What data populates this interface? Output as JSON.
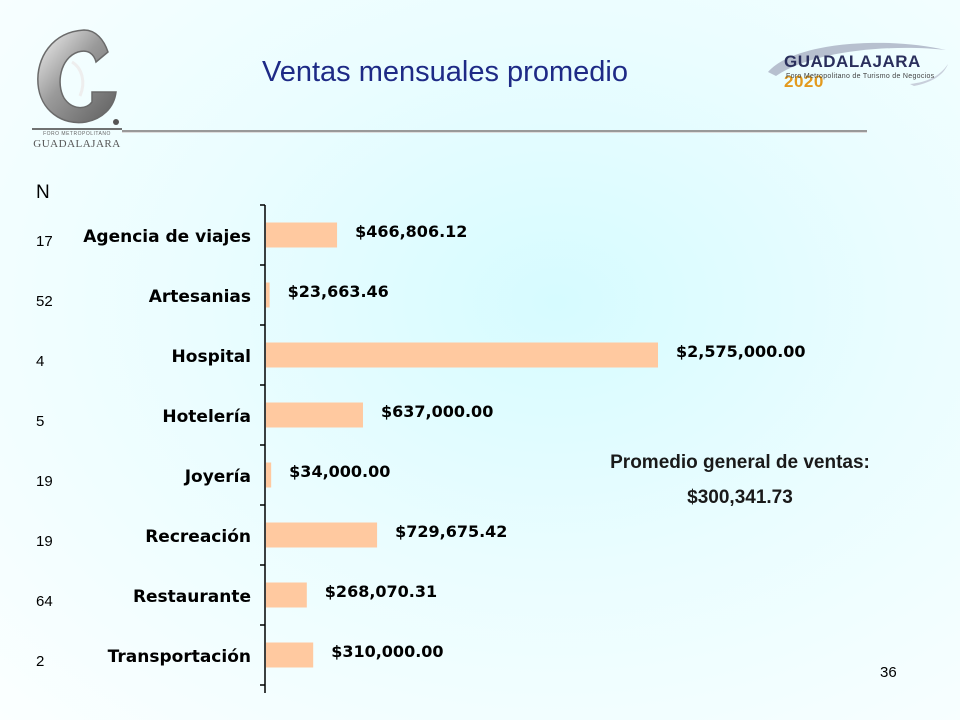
{
  "slide": {
    "title": "Ventas mensuales promedio",
    "page_number": "36"
  },
  "logos": {
    "left": {
      "small_text": "FORO METROPOLITANO",
      "text": "GUADALAJARA",
      "icon": "g-emblem-icon"
    },
    "right": {
      "text": "GUADALAJARA",
      "year": "2020",
      "subtitle": "Foro Metropolitano de Turismo de Negocios",
      "icon": "swoosh-icon"
    }
  },
  "n_column": {
    "header": "N",
    "values": [
      "17",
      "52",
      "4",
      "5",
      "19",
      "19",
      "64",
      "2"
    ]
  },
  "average": {
    "label": "Promedio general de ventas:",
    "value": "$300,341.73"
  },
  "chart_data": {
    "type": "bar",
    "orientation": "horizontal",
    "categories": [
      "Agencia de viajes",
      "Artesanias",
      "Hospital",
      "Hotelería",
      "Joyería",
      "Recreación",
      "Restaurante",
      "Transportación"
    ],
    "values": [
      466806.12,
      23663.46,
      2575000.0,
      637000.0,
      34000.0,
      729675.42,
      268070.31,
      310000.0
    ],
    "value_labels": [
      "$466,806.12",
      "$23,663.46",
      "$2,575,000.00",
      "$637,000.00",
      "$34,000.00",
      "$729,675.42",
      "$268,070.31",
      "$310,000.00"
    ],
    "title": "",
    "xlabel": "",
    "ylabel": "",
    "grid": false,
    "bar_color": "#ffc9a0"
  }
}
